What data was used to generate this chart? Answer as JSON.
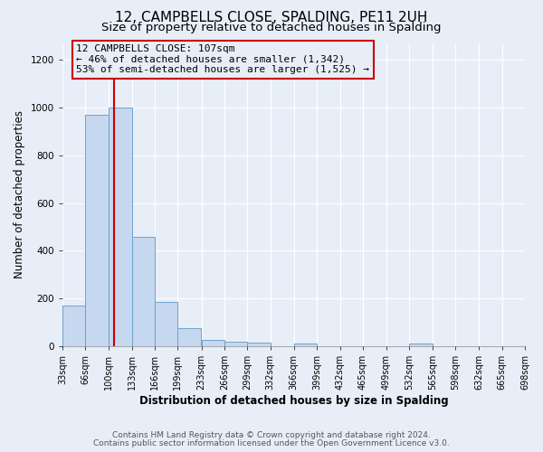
{
  "title": "12, CAMPBELLS CLOSE, SPALDING, PE11 2UH",
  "subtitle": "Size of property relative to detached houses in Spalding",
  "xlabel": "Distribution of detached houses by size in Spalding",
  "ylabel": "Number of detached properties",
  "bin_edges": [
    33,
    66,
    100,
    133,
    166,
    199,
    233,
    266,
    299,
    332,
    366,
    399,
    432,
    465,
    499,
    532,
    565,
    598,
    632,
    665,
    698
  ],
  "bin_counts": [
    170,
    970,
    1000,
    460,
    185,
    75,
    25,
    20,
    15,
    0,
    10,
    0,
    0,
    0,
    0,
    10,
    0,
    0,
    0,
    0
  ],
  "bar_color": "#c5d8f0",
  "bar_edge_color": "#6ea3cc",
  "property_size": 107,
  "vline_color": "#cc0000",
  "annotation_box_edge": "#cc0000",
  "annotation_line1": "12 CAMPBELLS CLOSE: 107sqm",
  "annotation_line2": "← 46% of detached houses are smaller (1,342)",
  "annotation_line3": "53% of semi-detached houses are larger (1,525) →",
  "ylim": [
    0,
    1270
  ],
  "yticks": [
    0,
    200,
    400,
    600,
    800,
    1000,
    1200
  ],
  "tick_labels": [
    "33sqm",
    "66sqm",
    "100sqm",
    "133sqm",
    "166sqm",
    "199sqm",
    "233sqm",
    "266sqm",
    "299sqm",
    "332sqm",
    "366sqm",
    "399sqm",
    "432sqm",
    "465sqm",
    "499sqm",
    "532sqm",
    "565sqm",
    "598sqm",
    "632sqm",
    "665sqm",
    "698sqm"
  ],
  "footnote1": "Contains HM Land Registry data © Crown copyright and database right 2024.",
  "footnote2": "Contains public sector information licensed under the Open Government Licence v3.0.",
  "background_color": "#e8eef8",
  "plot_bg_color": "#e8eef8",
  "grid_color": "#ffffff",
  "title_fontsize": 11,
  "subtitle_fontsize": 9.5,
  "axis_label_fontsize": 8.5,
  "tick_fontsize": 7,
  "annotation_fontsize": 8,
  "footnote_fontsize": 6.5
}
